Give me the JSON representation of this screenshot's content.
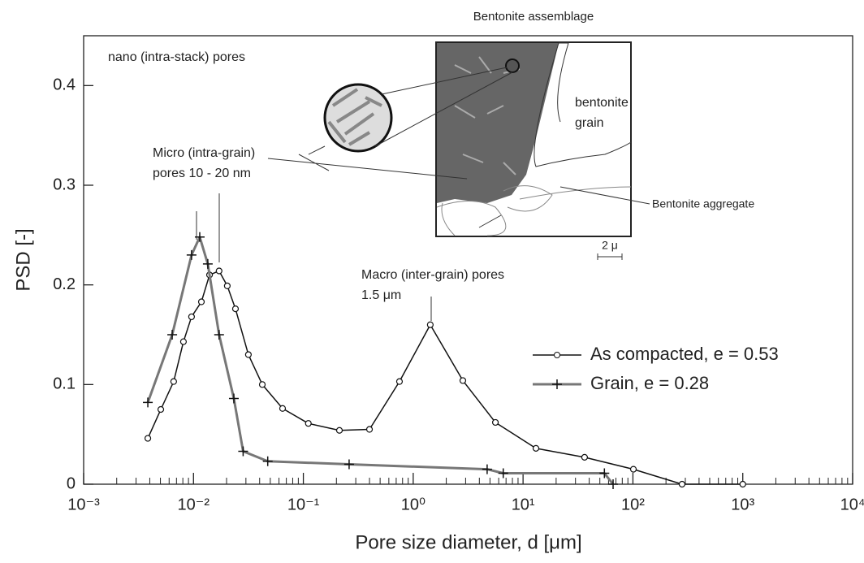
{
  "chart_data": {
    "type": "line",
    "xlabel": "Pore size diameter, d [μm]",
    "ylabel": "PSD [-]",
    "xscale": "log",
    "xlim": [
      0.001,
      10000
    ],
    "ylim": [
      0,
      0.45
    ],
    "xticks": [
      {
        "value": 0.001,
        "label": "10⁻³"
      },
      {
        "value": 0.01,
        "label": "10⁻²"
      },
      {
        "value": 0.1,
        "label": "10⁻¹"
      },
      {
        "value": 1,
        "label": "10⁰"
      },
      {
        "value": 10,
        "label": "10¹"
      },
      {
        "value": 100,
        "label": "10²"
      },
      {
        "value": 1000,
        "label": "10³"
      },
      {
        "value": 10000,
        "label": "10⁴"
      }
    ],
    "yticks": [
      0,
      0.1,
      0.2,
      0.3,
      0.4
    ],
    "legend": "right",
    "series": [
      {
        "name": "As compacted, e = 0.53",
        "color": "#111111",
        "marker": "circle",
        "x": [
          0.00384,
          0.00504,
          0.0066,
          0.0081,
          0.0096,
          0.0118,
          0.014,
          0.0171,
          0.0203,
          0.0241,
          0.0316,
          0.0423,
          0.0647,
          0.111,
          0.213,
          0.4,
          0.75,
          1.43,
          2.83,
          5.6,
          13.1,
          36.3,
          101,
          280,
          1000
        ],
        "values": [
          0.046,
          0.075,
          0.103,
          0.143,
          0.168,
          0.183,
          0.21,
          0.214,
          0.199,
          0.176,
          0.13,
          0.1,
          0.076,
          0.061,
          0.054,
          0.055,
          0.103,
          0.16,
          0.104,
          0.062,
          0.036,
          0.027,
          0.015,
          0,
          0
        ]
      },
      {
        "name": "Grain, e = 0.28",
        "color": "#777777",
        "marker": "plus",
        "x": [
          0.00384,
          0.0064,
          0.0096,
          0.0114,
          0.0135,
          0.0171,
          0.0233,
          0.0283,
          0.0474,
          0.261,
          4.71,
          6.6,
          55,
          66
        ],
        "values": [
          0.082,
          0.15,
          0.23,
          0.248,
          0.221,
          0.15,
          0.086,
          0.033,
          0.023,
          0.02,
          0.015,
          0.011,
          0.011,
          0
        ]
      }
    ],
    "annotations": [
      "Bentonite assemblage",
      "nano (intra-stack) pores",
      "Micro (intra-grain)",
      "pores 10 - 20 nm",
      "Macro (inter-grain) pores",
      "1.5 μm",
      "bentonite",
      "grain",
      "Bentonite aggregate",
      "2 μ"
    ]
  }
}
